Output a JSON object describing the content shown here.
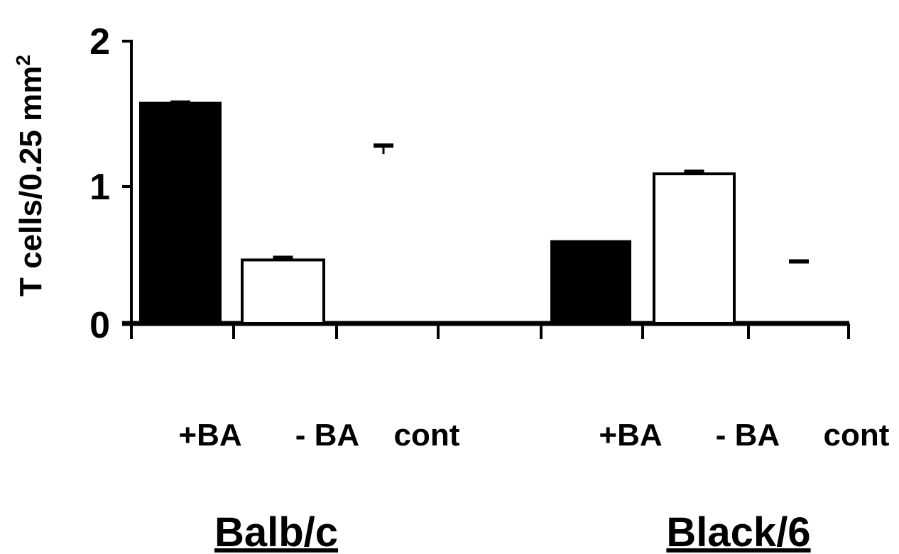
{
  "chart_data": {
    "type": "bar",
    "ylabel": "T cells/0.25 mm",
    "ylabel_superscript": "2",
    "ylim": [
      0,
      2
    ],
    "yticks": [
      "0",
      "1",
      "2"
    ],
    "grid": false,
    "legend": "none",
    "groups": [
      {
        "label": "Balb/c",
        "bars": [
          {
            "category": "+BA",
            "value": 1.56,
            "error": 0.02,
            "fill": "#000000"
          },
          {
            "category": "- BA",
            "value": 0.45,
            "error": 0.03,
            "fill": "#ffffff"
          },
          {
            "category": "cont",
            "value": 0.0,
            "marker": 1.26,
            "error": 0.06,
            "fill": "#ffffff"
          }
        ]
      },
      {
        "label": "Black/6",
        "bars": [
          {
            "category": "+BA",
            "value": 0.58,
            "error": 0.0,
            "fill": "#000000"
          },
          {
            "category": "- BA",
            "value": 1.06,
            "error": 0.03,
            "fill": "#ffffff"
          },
          {
            "category": "cont",
            "value": 0.0,
            "marker": 0.44,
            "error": 0.0,
            "fill": "#ffffff"
          }
        ]
      }
    ]
  }
}
